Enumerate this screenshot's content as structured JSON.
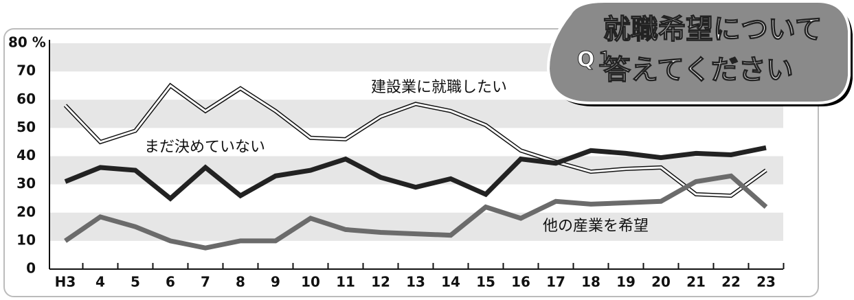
{
  "chart_data": {
    "type": "line",
    "badge": "Q１",
    "title_lines": [
      "就職希望について",
      "答えてください"
    ],
    "categories": [
      "H3",
      "4",
      "5",
      "6",
      "7",
      "8",
      "9",
      "10",
      "11",
      "12",
      "13",
      "14",
      "15",
      "16",
      "17",
      "18",
      "19",
      "20",
      "21",
      "22",
      "23"
    ],
    "series": [
      {
        "name": "建設業に就職したい",
        "color": "#ffffff",
        "values": [
          58,
          45,
          49,
          65,
          56,
          64,
          56,
          46.5,
          46,
          54,
          58.5,
          56,
          51,
          42,
          38,
          34.5,
          35.5,
          36,
          26.5,
          26,
          35
        ]
      },
      {
        "name": "まだ決めていない",
        "color": "#222222",
        "values": [
          31,
          36,
          35,
          25,
          36,
          26,
          33,
          35,
          39,
          32.5,
          29,
          32,
          26.5,
          39,
          37.5,
          42,
          41,
          39.5,
          41,
          40.5,
          43
        ]
      },
      {
        "name": "他の産業を希望",
        "color": "#6b6b6b",
        "values": [
          10,
          18.5,
          15,
          10,
          7.5,
          10,
          10,
          18,
          14,
          13,
          12.5,
          12,
          22,
          18,
          24,
          23,
          23.5,
          24,
          31,
          33,
          22
        ]
      }
    ],
    "ylim": [
      0,
      80
    ],
    "yticks": [
      0,
      10,
      20,
      30,
      40,
      50,
      60,
      70,
      {
        "value": 80,
        "label": "80 %"
      }
    ],
    "grid": "bands"
  }
}
